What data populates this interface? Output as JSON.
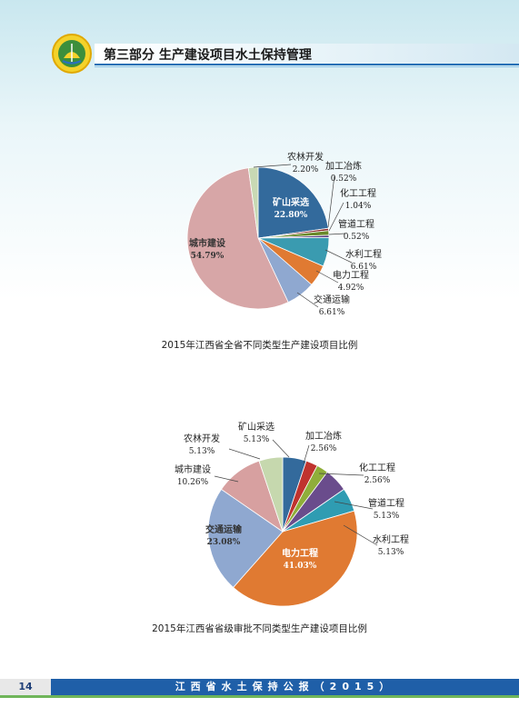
{
  "header": {
    "title": "第三部分  生产建设项目水土保持管理"
  },
  "footer": {
    "page_number": "14",
    "title": "江西省水土保持公报（2015）"
  },
  "colors": {
    "header_rule": "#1f6fb5",
    "footer_bar": "#1f5fa8"
  },
  "chart_data": [
    {
      "type": "pie",
      "title": "2015年江西省全省不同类型生产建设项目比例",
      "slices": [
        {
          "label": "矿山采选",
          "value": 22.8,
          "display": "22.80%",
          "color": "#336a9c"
        },
        {
          "label": "加工冶炼",
          "value": 0.52,
          "display": "0.52%",
          "color": "#8b2b2b"
        },
        {
          "label": "化工工程",
          "value": 1.04,
          "display": "1.04%",
          "color": "#6a8a2a"
        },
        {
          "label": "管道工程",
          "value": 0.52,
          "display": "0.52%",
          "color": "#5b3d7d"
        },
        {
          "label": "水利工程",
          "value": 6.61,
          "display": "6.61%",
          "color": "#3a9bb0"
        },
        {
          "label": "电力工程",
          "value": 4.92,
          "display": "4.92%",
          "color": "#e07a32"
        },
        {
          "label": "交通运输",
          "value": 6.61,
          "display": "6.61%",
          "color": "#8fa8d0"
        },
        {
          "label": "城市建设",
          "value": 54.79,
          "display": "54.79%",
          "color": "#d7a6a7"
        },
        {
          "label": "农林开发",
          "value": 2.2,
          "display": "2.20%",
          "color": "#c8d9b4"
        }
      ]
    },
    {
      "type": "pie",
      "title": "2015年江西省省级审批不同类型生产建设项目比例",
      "slices": [
        {
          "label": "矿山采选",
          "value": 5.13,
          "display": "5.13%",
          "color": "#336a9c"
        },
        {
          "label": "加工冶炼",
          "value": 2.56,
          "display": "2.56%",
          "color": "#c0332e"
        },
        {
          "label": "化工工程",
          "value": 2.56,
          "display": "2.56%",
          "color": "#8fae3a"
        },
        {
          "label": "管道工程",
          "value": 5.13,
          "display": "5.13%",
          "color": "#6a4c8c"
        },
        {
          "label": "水利工程",
          "value": 5.13,
          "display": "5.13%",
          "color": "#2f9cb2"
        },
        {
          "label": "电力工程",
          "value": 41.03,
          "display": "41.03%",
          "color": "#e07a32"
        },
        {
          "label": "交通运输",
          "value": 23.08,
          "display": "23.08%",
          "color": "#8fa8d0"
        },
        {
          "label": "城市建设",
          "value": 10.26,
          "display": "10.26%",
          "color": "#d7a0a0"
        },
        {
          "label": "农林开发",
          "value": 5.13,
          "display": "5.13%",
          "color": "#c6d8ae"
        }
      ]
    }
  ]
}
